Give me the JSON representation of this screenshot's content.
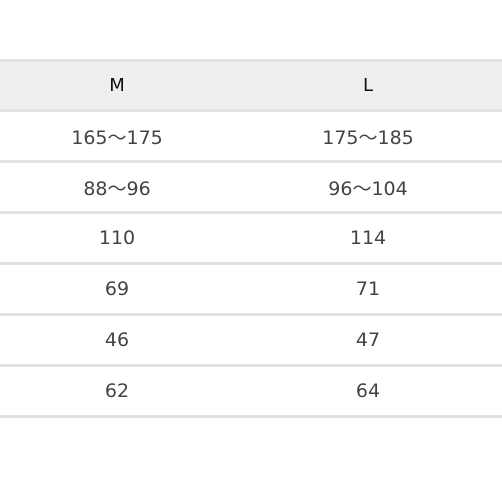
{
  "table": {
    "header": [
      "M",
      "L"
    ],
    "rows": [
      [
        "165～175",
        "175～185"
      ],
      [
        "88～96",
        "96～104"
      ],
      [
        "110",
        "114"
      ],
      [
        "69",
        "71"
      ],
      [
        "46",
        "47"
      ],
      [
        "62",
        "64"
      ]
    ]
  }
}
